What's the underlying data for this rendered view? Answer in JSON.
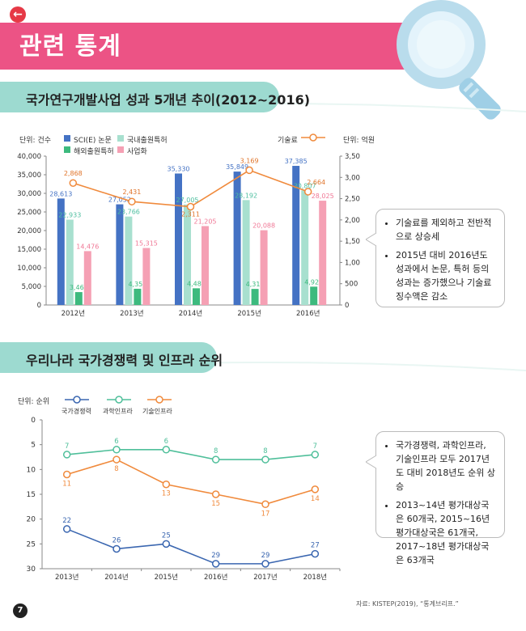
{
  "header": {
    "title": "관련 통계",
    "back_icon": "back-arrow-icon"
  },
  "section1": {
    "title": "국가연구개발사업 성과 5개년 추이(2012~2016)"
  },
  "section2": {
    "title": "우리나라 국가경쟁력 및 인프라 순위"
  },
  "chart1": {
    "unit_left": "단위: 건수",
    "unit_right": "단위: 억원",
    "legend": [
      {
        "name": "SCI(E) 논문",
        "color": "#4472c4"
      },
      {
        "name": "국내출원특허",
        "color": "#a8e0cf"
      },
      {
        "name": "해외출원특허",
        "color": "#3dba7e"
      },
      {
        "name": "사업화",
        "color": "#f5a0b4"
      },
      {
        "name": "기술료",
        "color": "#f08a3c"
      }
    ]
  },
  "chart2": {
    "unit": "단위: 순위",
    "legend": [
      {
        "name": "국가경쟁력",
        "color": "#3a66b0"
      },
      {
        "name": "과학인프라",
        "color": "#4fbf9a"
      },
      {
        "name": "기술인프라",
        "color": "#f08a3c"
      }
    ]
  },
  "chart_data": [
    {
      "type": "bar",
      "categories": [
        "2012년",
        "2013년",
        "2014년",
        "2015년",
        "2016년"
      ],
      "ylim": [
        0,
        40000
      ],
      "yticks": [
        "0",
        "5,000",
        "10,000",
        "15,000",
        "20,000",
        "25,000",
        "30,000",
        "35,000",
        "40,000"
      ],
      "y2lim": [
        0,
        3500
      ],
      "y2ticks": [
        "0",
        "500",
        "1,000",
        "1,500",
        "2,000",
        "2,500",
        "3,000",
        "3,500"
      ],
      "series": [
        {
          "name": "SCI(E) 논문",
          "values": [
            28613,
            27052,
            35330,
            35849,
            37385
          ],
          "labels": [
            "28,613",
            "27,052",
            "35,330",
            "35,849",
            "37,385"
          ]
        },
        {
          "name": "국내출원특허",
          "values": [
            22933,
            23766,
            27005,
            28192,
            30807
          ],
          "labels": [
            "22,933",
            "23,766",
            "27,005",
            "28,192",
            "30,807"
          ]
        },
        {
          "name": "해외출원특허",
          "values": [
            3464,
            4357,
            4486,
            4316,
            4923
          ],
          "labels": [
            "3,464",
            "4,357",
            "4,486",
            "4,316",
            "4,923"
          ]
        },
        {
          "name": "사업화",
          "values": [
            14476,
            15315,
            21205,
            20088,
            28025
          ],
          "labels": [
            "14,476",
            "15,315",
            "21,205",
            "20,088",
            "28,025"
          ]
        },
        {
          "name": "기술료",
          "type": "line",
          "axis": "right",
          "values": [
            2868,
            2431,
            2311,
            3169,
            2664
          ],
          "labels": [
            "2,868",
            "2,431",
            "2,311",
            "3,169",
            "2,664"
          ]
        }
      ]
    },
    {
      "type": "line",
      "categories": [
        "2013년",
        "2014년",
        "2015년",
        "2016년",
        "2017년",
        "2018년"
      ],
      "ylim": [
        0,
        30
      ],
      "y_inverted": true,
      "yticks": [
        "0",
        "5",
        "10",
        "15",
        "20",
        "25",
        "30"
      ],
      "series": [
        {
          "name": "국가경쟁력",
          "values": [
            22,
            26,
            25,
            29,
            29,
            27
          ]
        },
        {
          "name": "과학인프라",
          "values": [
            7,
            6,
            6,
            8,
            8,
            7
          ]
        },
        {
          "name": "기술인프라",
          "values": [
            11,
            8,
            13,
            15,
            17,
            14
          ]
        }
      ]
    }
  ],
  "notes1": [
    "기술료를 제외하고 전반적으로 상승세",
    "2015년 대비 2016년도 성과에서 논문, 특허 등의 성과는 증가했으나 기술료 징수액은 감소"
  ],
  "notes2": [
    "국가경쟁력, 과학인프라, 기술인프라 모두 2017년도 대비 2018년도 순위 상승",
    "2013~14년 평가대상국은 60개국, 2015~16년 평가대상국은 61개국, 2017~18년 평가대상국은 63개국"
  ],
  "source": "자료: KISTEP(2019), “통계브리프.”",
  "page_number": "7"
}
